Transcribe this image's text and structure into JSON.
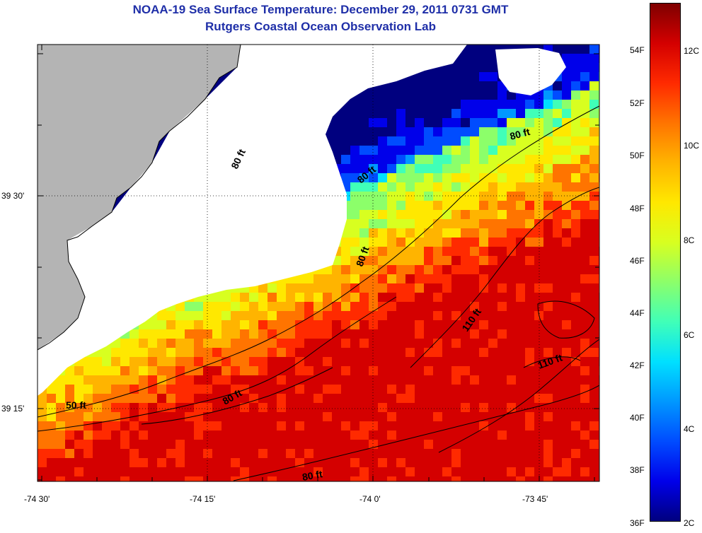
{
  "header": {
    "title": "NOAA-19 Sea Surface Temperature:  December 29, 2011 0731 GMT",
    "subtitle": "Rutgers Coastal Ocean Observation Lab"
  },
  "axes": {
    "x_ticks": [
      "-74 30'",
      "-74 15'",
      "-74 0'",
      "-73 45'"
    ],
    "y_ticks": [
      "39 30'",
      "39 15'"
    ]
  },
  "contour_labels": [
    "50 ft",
    "80 ft",
    "80 ft",
    "80 ft",
    "80 ft",
    "80 ft",
    "80 ft",
    "110 ft",
    "110 ft"
  ],
  "colorbar": {
    "fahrenheit": [
      "54F",
      "52F",
      "50F",
      "48F",
      "46F",
      "44F",
      "42F",
      "40F",
      "38F",
      "36F"
    ],
    "celsius": [
      "12C",
      "10C",
      "8C",
      "6C",
      "4C",
      "2C"
    ]
  },
  "colors": {
    "title": "#1f2fa8",
    "land": "#b4b4b4",
    "no_data": "#ffffff",
    "colormap": [
      "#00007f",
      "#0000ea",
      "#004cff",
      "#0098ff",
      "#00e0ff",
      "#40ffb8",
      "#8cff6a",
      "#d8ff20",
      "#ffe800",
      "#ffb400",
      "#ff7400",
      "#ff2a00",
      "#d40000",
      "#7f0000"
    ]
  }
}
